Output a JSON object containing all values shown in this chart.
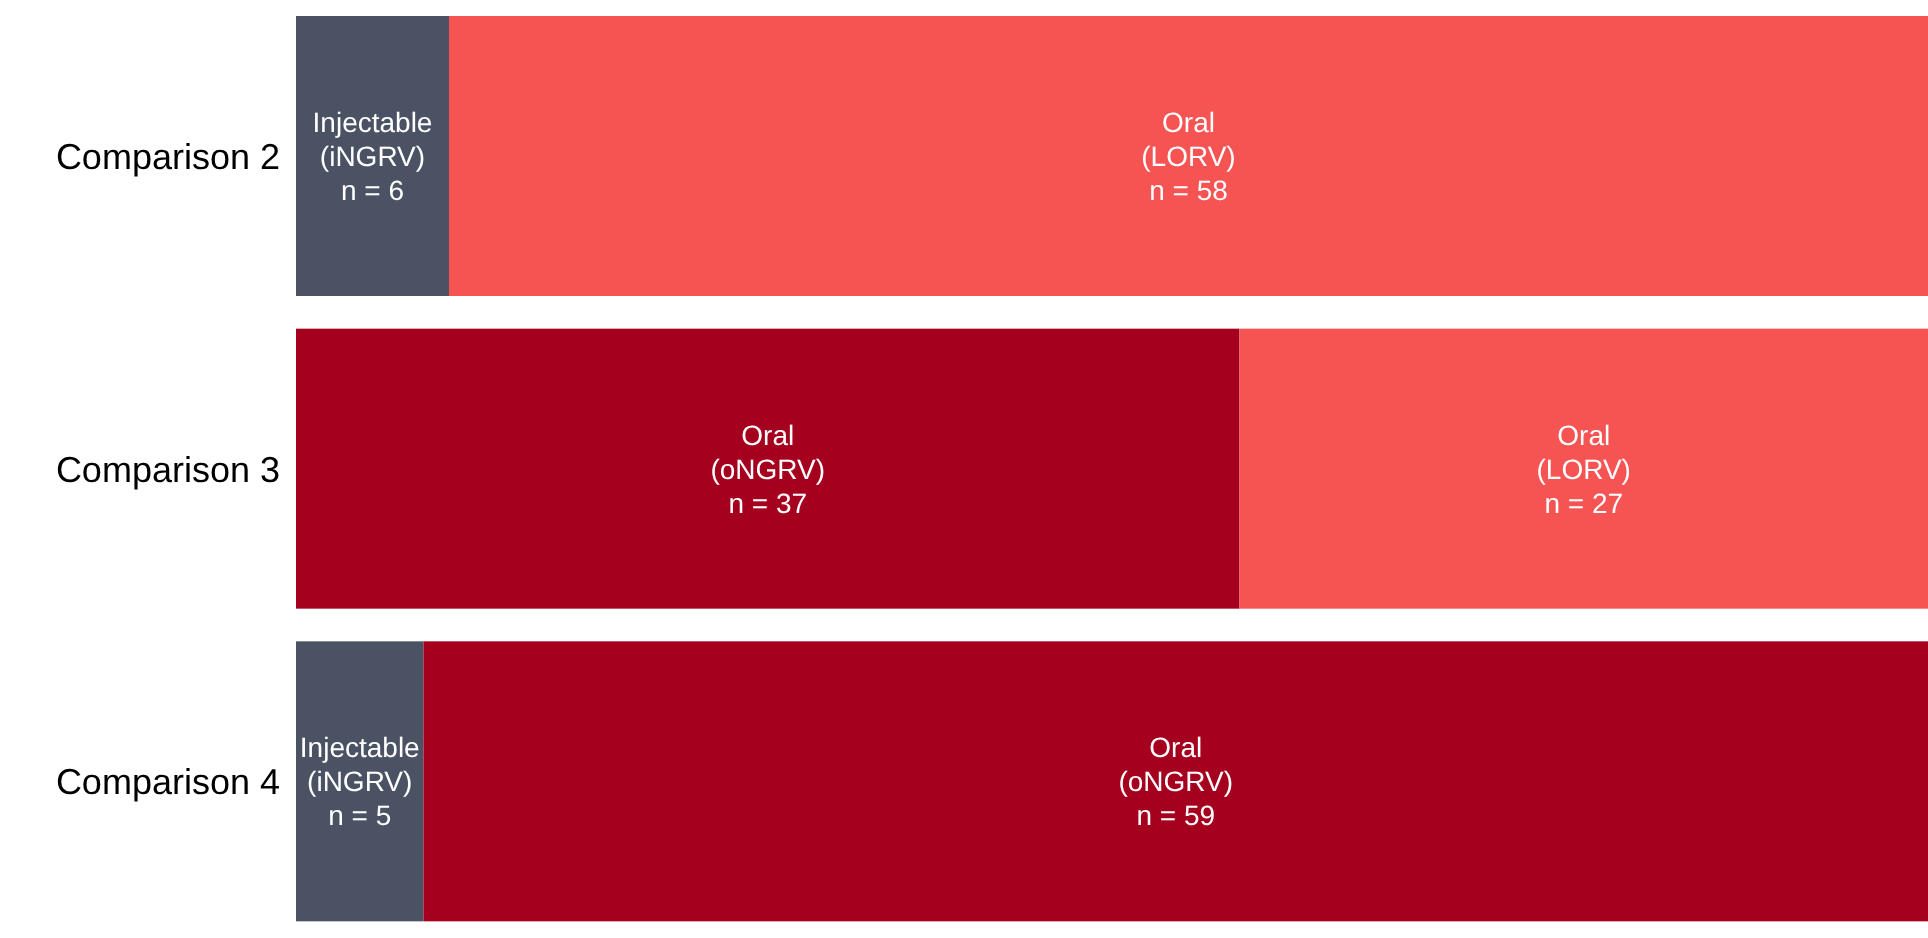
{
  "chart_data": {
    "type": "bar",
    "orientation": "horizontal",
    "stacked": true,
    "tick_labels": "y",
    "grid": false,
    "legend": false,
    "xlim": [
      0,
      64
    ],
    "categories": [
      "Comparison 2",
      "Comparison 3",
      "Comparison 4"
    ],
    "series": [
      {
        "color": "#4a5263",
        "values": [
          6,
          null,
          5
        ],
        "value_labels": [
          "Injectable\n(iNGRV)\nn = 6",
          null,
          "Injectable\n(iNGRV)\nn = 5"
        ]
      },
      {
        "color": "#a5001e",
        "values": [
          null,
          37,
          59
        ],
        "value_labels": [
          null,
          "Oral\n(oNGRV)\nn = 37",
          "Oral\n(oNGRV)\nn = 59"
        ]
      },
      {
        "color": "#f65353",
        "values": [
          58,
          27,
          null
        ],
        "value_labels": [
          "Oral\n(LORV)\nn = 58",
          "Oral\n(LORV)\nn = 27",
          null
        ]
      }
    ]
  }
}
